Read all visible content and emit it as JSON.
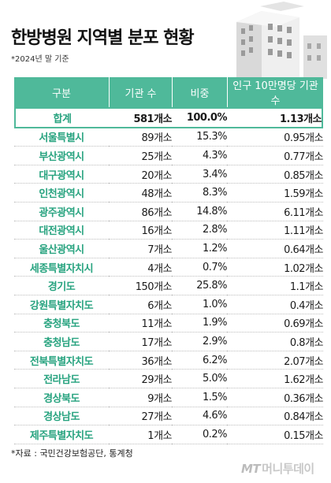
{
  "title": "한방병원 지역별 분포 현황",
  "note": "*2024년 말 기준",
  "headers": [
    "구분",
    "기관 수",
    "비중",
    "인구 10만명당 기관 수"
  ],
  "rows": [
    {
      "region": "합계",
      "count": "581개소",
      "ratio": "100.0%",
      "per": "1.13개소"
    },
    {
      "region": "서울특별시",
      "count": "89개소",
      "ratio": "15.3%",
      "per": "0.95개소"
    },
    {
      "region": "부산광역시",
      "count": "25개소",
      "ratio": "4.3%",
      "per": "0.77개소"
    },
    {
      "region": "대구광역시",
      "count": "20개소",
      "ratio": "3.4%",
      "per": "0.85개소"
    },
    {
      "region": "인천광역시",
      "count": "48개소",
      "ratio": "8.3%",
      "per": "1.59개소"
    },
    {
      "region": "광주광역시",
      "count": "86개소",
      "ratio": "14.8%",
      "per": "6.11개소"
    },
    {
      "region": "대전광역시",
      "count": "16개소",
      "ratio": "2.8%",
      "per": "1.11개소"
    },
    {
      "region": "울산광역시",
      "count": "7개소",
      "ratio": "1.2%",
      "per": "0.64개소"
    },
    {
      "region": "세종특별자치시",
      "count": "4개소",
      "ratio": "0.7%",
      "per": "1.02개소"
    },
    {
      "region": "경기도",
      "count": "150개소",
      "ratio": "25.8%",
      "per": "1.1개소"
    },
    {
      "region": "강원특별자치도",
      "count": "6개소",
      "ratio": "1.0%",
      "per": "0.4개소"
    },
    {
      "region": "충청북도",
      "count": "11개소",
      "ratio": "1.9%",
      "per": "0.69개소"
    },
    {
      "region": "충청남도",
      "count": "17개소",
      "ratio": "2.9%",
      "per": "0.8개소"
    },
    {
      "region": "전북특별자치도",
      "count": "36개소",
      "ratio": "6.2%",
      "per": "2.07개소"
    },
    {
      "region": "전라남도",
      "count": "29개소",
      "ratio": "5.0%",
      "per": "1.62개소"
    },
    {
      "region": "경상북도",
      "count": "9개소",
      "ratio": "1.5%",
      "per": "0.36개소"
    },
    {
      "region": "경상남도",
      "count": "27개소",
      "ratio": "4.6%",
      "per": "0.84개소"
    },
    {
      "region": "제주특별자치도",
      "count": "1개소",
      "ratio": "0.2%",
      "per": "0.15개소"
    }
  ],
  "source": "*자료 : 국민건강보험공단, 통계청",
  "logo": {
    "mark": "MT",
    "text": "머니투데이"
  },
  "colors": {
    "accent": "#4fb99a",
    "region_text": "#27a37f"
  },
  "illustration": "hospital-building-icon"
}
